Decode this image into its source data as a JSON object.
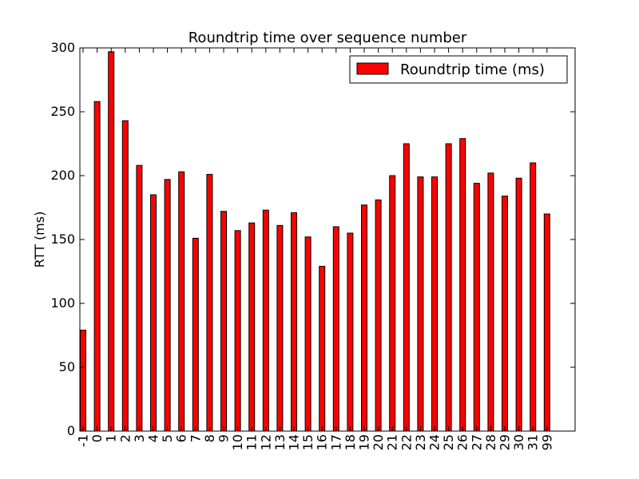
{
  "chart_data": {
    "type": "bar",
    "title": "Roundtrip time over sequence number",
    "xlabel": "",
    "ylabel": "RTT (ms)",
    "ylim": [
      0,
      300
    ],
    "yticks": [
      0,
      50,
      100,
      150,
      200,
      250,
      300
    ],
    "categories": [
      "-1",
      "0",
      "1",
      "2",
      "3",
      "4",
      "5",
      "6",
      "7",
      "8",
      "9",
      "10",
      "11",
      "12",
      "13",
      "14",
      "15",
      "16",
      "17",
      "18",
      "19",
      "20",
      "21",
      "22",
      "23",
      "24",
      "25",
      "26",
      "27",
      "28",
      "29",
      "30",
      "31",
      "99"
    ],
    "series": [
      {
        "name": "Roundtrip time (ms)",
        "color": "#ff0000",
        "values": [
          79,
          258,
          297,
          243,
          208,
          185,
          197,
          203,
          151,
          201,
          172,
          157,
          163,
          173,
          161,
          171,
          152,
          129,
          160,
          155,
          177,
          181,
          200,
          225,
          199,
          199,
          225,
          229,
          194,
          202,
          184,
          198,
          210,
          170
        ]
      }
    ],
    "grid": false,
    "legend_position": "top-right"
  }
}
